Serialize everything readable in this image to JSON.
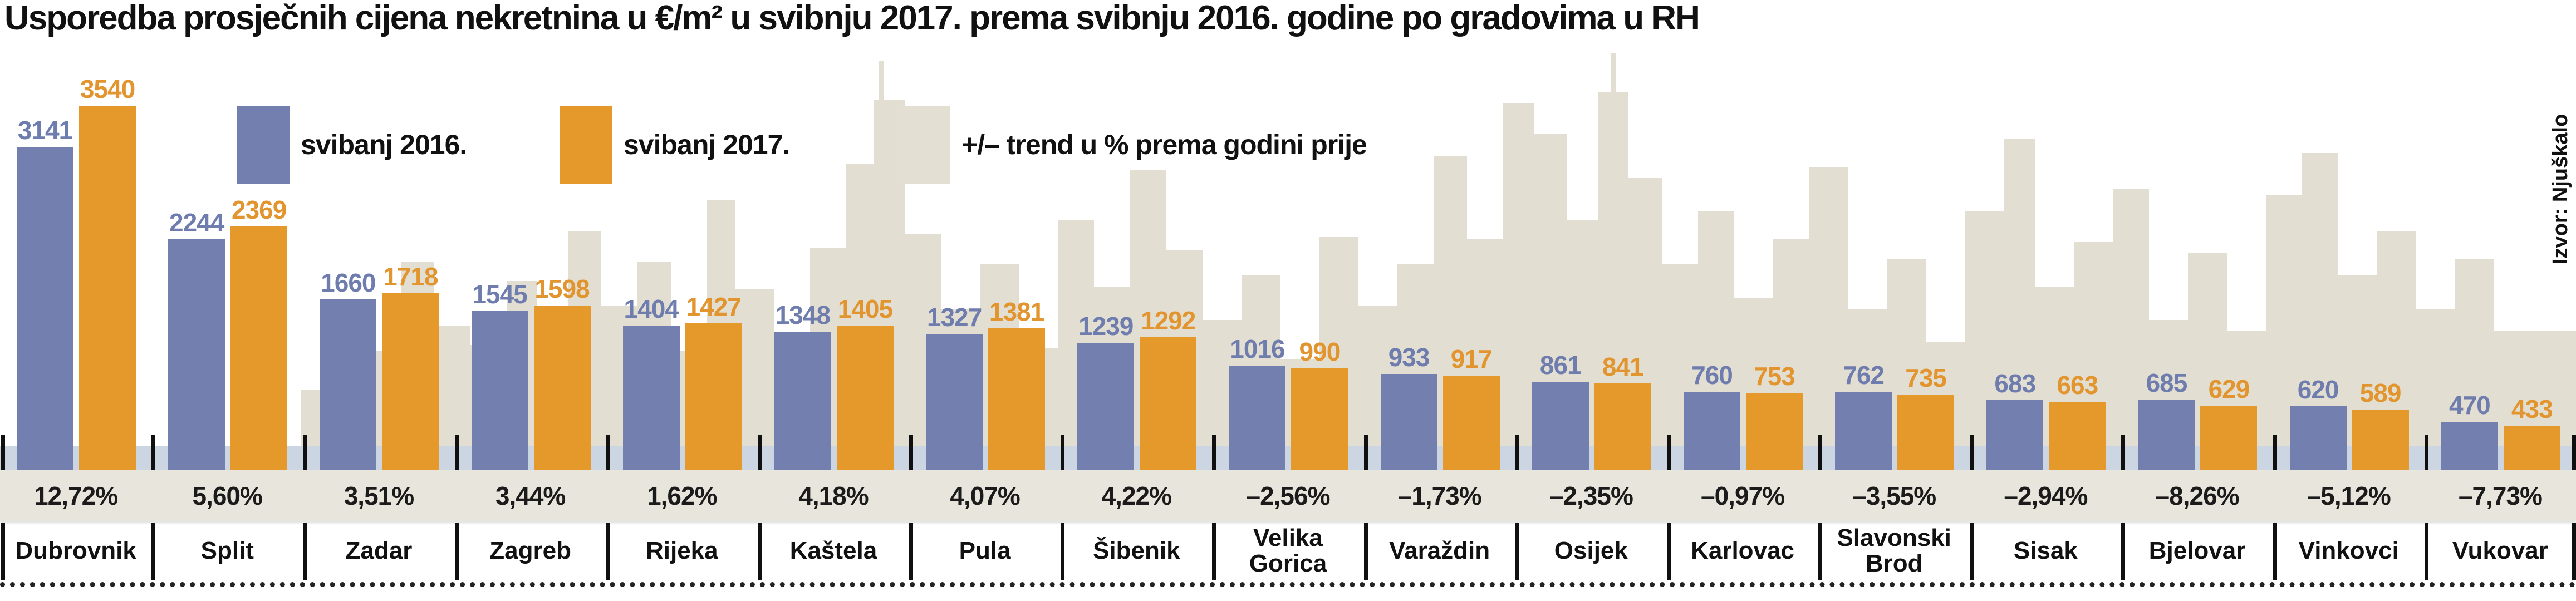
{
  "title": "Usporedba prosječnih cijena nekretnina u €/m² u svibnju 2017. prema svibnju 2016. godine po gradovima u RH",
  "source": "Izvor: Njuškalo",
  "legend": [
    {
      "label": "svibanj 2016.",
      "color": "#737fae"
    },
    {
      "label": "svibanj 2017.",
      "color": "#e6992b"
    },
    {
      "label": "+/– trend u % prema godini prije",
      "color": "#e3dfd3"
    }
  ],
  "chart_data": {
    "type": "bar",
    "title": "Usporedba prosječnih cijena nekretnina u €/m² u svibnju 2017. prema svibnju 2016. godine po gradovima u RH",
    "unit": "€/m²",
    "grid": false,
    "legend_position": "top",
    "ylim": [
      0,
      3600
    ],
    "categories": [
      "Dubrovnik",
      "Split",
      "Zadar",
      "Zagreb",
      "Rijeka",
      "Kaštela",
      "Pula",
      "Šibenik",
      "Velika Gorica",
      "Varaždin",
      "Osijek",
      "Karlovac",
      "Slavonski Brod",
      "Sisak",
      "Bjelovar",
      "Vinkovci",
      "Vukovar"
    ],
    "series": [
      {
        "name": "svibanj 2016.",
        "color": "#737fae",
        "values": [
          3141,
          2244,
          1660,
          1545,
          1404,
          1348,
          1327,
          1239,
          1016,
          933,
          861,
          760,
          762,
          683,
          685,
          620,
          470
        ]
      },
      {
        "name": "svibanj 2017.",
        "color": "#e6992b",
        "values": [
          3540,
          2369,
          1718,
          1598,
          1427,
          1405,
          1381,
          1292,
          990,
          917,
          841,
          753,
          735,
          663,
          629,
          589,
          433
        ]
      }
    ],
    "trend_pct": [
      "12,72%",
      "5,60%",
      "3,51%",
      "3,44%",
      "1,62%",
      "4,18%",
      "4,07%",
      "4,22%",
      "–2,56%",
      "–1,73%",
      "–2,35%",
      "–0,97%",
      "–3,55%",
      "–2,94%",
      "–8,26%",
      "–5,12%",
      "–7,73%"
    ]
  }
}
